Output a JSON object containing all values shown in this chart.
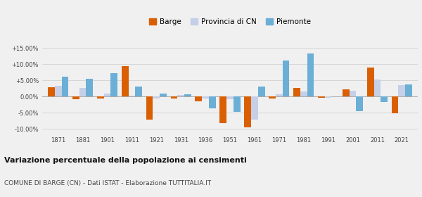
{
  "years": [
    1871,
    1881,
    1901,
    1911,
    1921,
    1931,
    1936,
    1951,
    1961,
    1971,
    1981,
    1991,
    2001,
    2011,
    2021
  ],
  "barge": [
    2.8,
    -0.9,
    -0.5,
    9.4,
    -7.0,
    -0.5,
    -1.5,
    -8.2,
    -9.5,
    -0.5,
    2.6,
    -0.3,
    2.2,
    9.0,
    -5.2
  ],
  "provincia_cn": [
    3.3,
    2.7,
    1.0,
    0.2,
    -0.5,
    0.5,
    -0.5,
    -0.9,
    -7.0,
    0.8,
    1.5,
    -0.3,
    1.7,
    5.2,
    3.5
  ],
  "piemonte": [
    6.2,
    5.4,
    7.3,
    3.0,
    1.0,
    0.8,
    -3.6,
    -4.8,
    3.1,
    11.2,
    13.3,
    0.0,
    -4.5,
    -1.6,
    3.7
  ],
  "color_barge": "#d95f02",
  "color_provincia": "#c6cfe8",
  "color_piemonte": "#6baed6",
  "title": "Variazione percentuale della popolazione ai censimenti",
  "subtitle": "COMUNE DI BARGE (CN) - Dati ISTAT - Elaborazione TUTTITALIA.IT",
  "yticks": [
    -10,
    -5,
    0,
    5,
    10,
    15
  ],
  "ytick_labels": [
    "-10.00%",
    "-5.00%",
    "0.00%",
    "+5.00%",
    "+10.00%",
    "+15.00%"
  ],
  "ylim": [
    -11.5,
    17
  ],
  "background_color": "#f0f0f0"
}
